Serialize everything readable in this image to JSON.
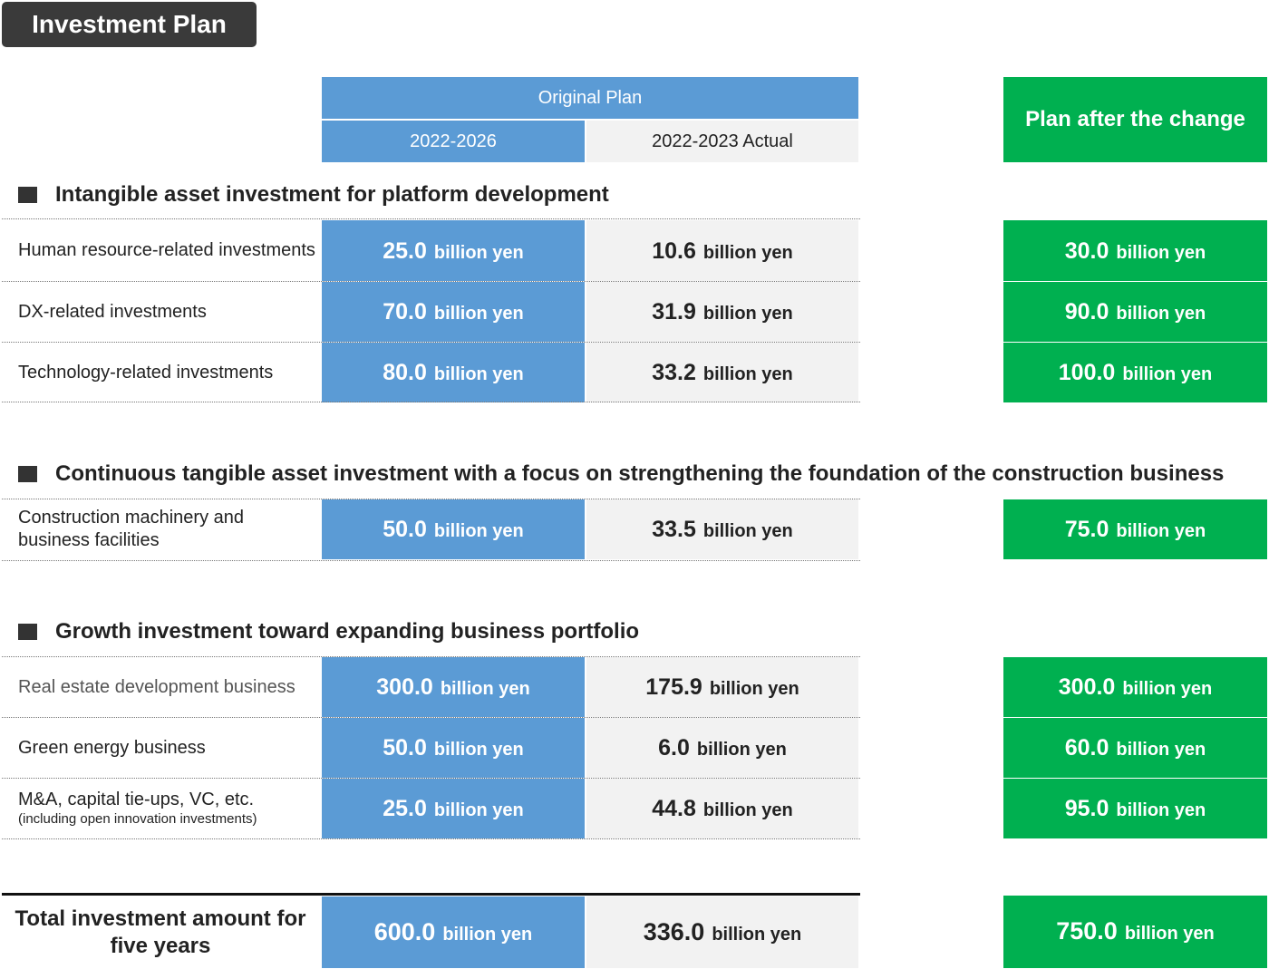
{
  "title": "Investment Plan",
  "header": {
    "original_plan": "Original Plan",
    "period": "2022-2026",
    "actual": "2022-2023 Actual",
    "new_plan": "Plan after the change"
  },
  "unit": "billion yen",
  "sections": [
    {
      "title": "Intangible asset investment for platform development",
      "rows": [
        {
          "label": "Human resource-related investments",
          "original": "25.0",
          "actual": "10.6",
          "new": "30.0"
        },
        {
          "label": "DX-related investments",
          "original": "70.0",
          "actual": "31.9",
          "new": "90.0"
        },
        {
          "label": "Technology-related investments",
          "original": "80.0",
          "actual": "33.2",
          "new": "100.0"
        }
      ]
    },
    {
      "title": "Continuous tangible asset investment with a focus on strengthening the foundation of the construction business",
      "rows": [
        {
          "label": "Construction machinery and business facilities",
          "original": "50.0",
          "actual": "33.5",
          "new": "75.0"
        }
      ]
    },
    {
      "title": "Growth investment toward expanding business portfolio",
      "rows": [
        {
          "label": "Real estate development business",
          "original": "300.0",
          "actual": "175.9",
          "new": "300.0"
        },
        {
          "label": "Green energy business",
          "original": "50.0",
          "actual": "6.0",
          "new": "60.0"
        },
        {
          "label": "M&A, capital tie-ups, VC, etc.",
          "sublabel": "(including open innovation investments)",
          "original": "25.0",
          "actual": "44.8",
          "new": "95.0"
        }
      ]
    }
  ],
  "total": {
    "label": "Total investment amount for five years",
    "original": "600.0",
    "actual": "336.0",
    "new": "750.0"
  }
}
